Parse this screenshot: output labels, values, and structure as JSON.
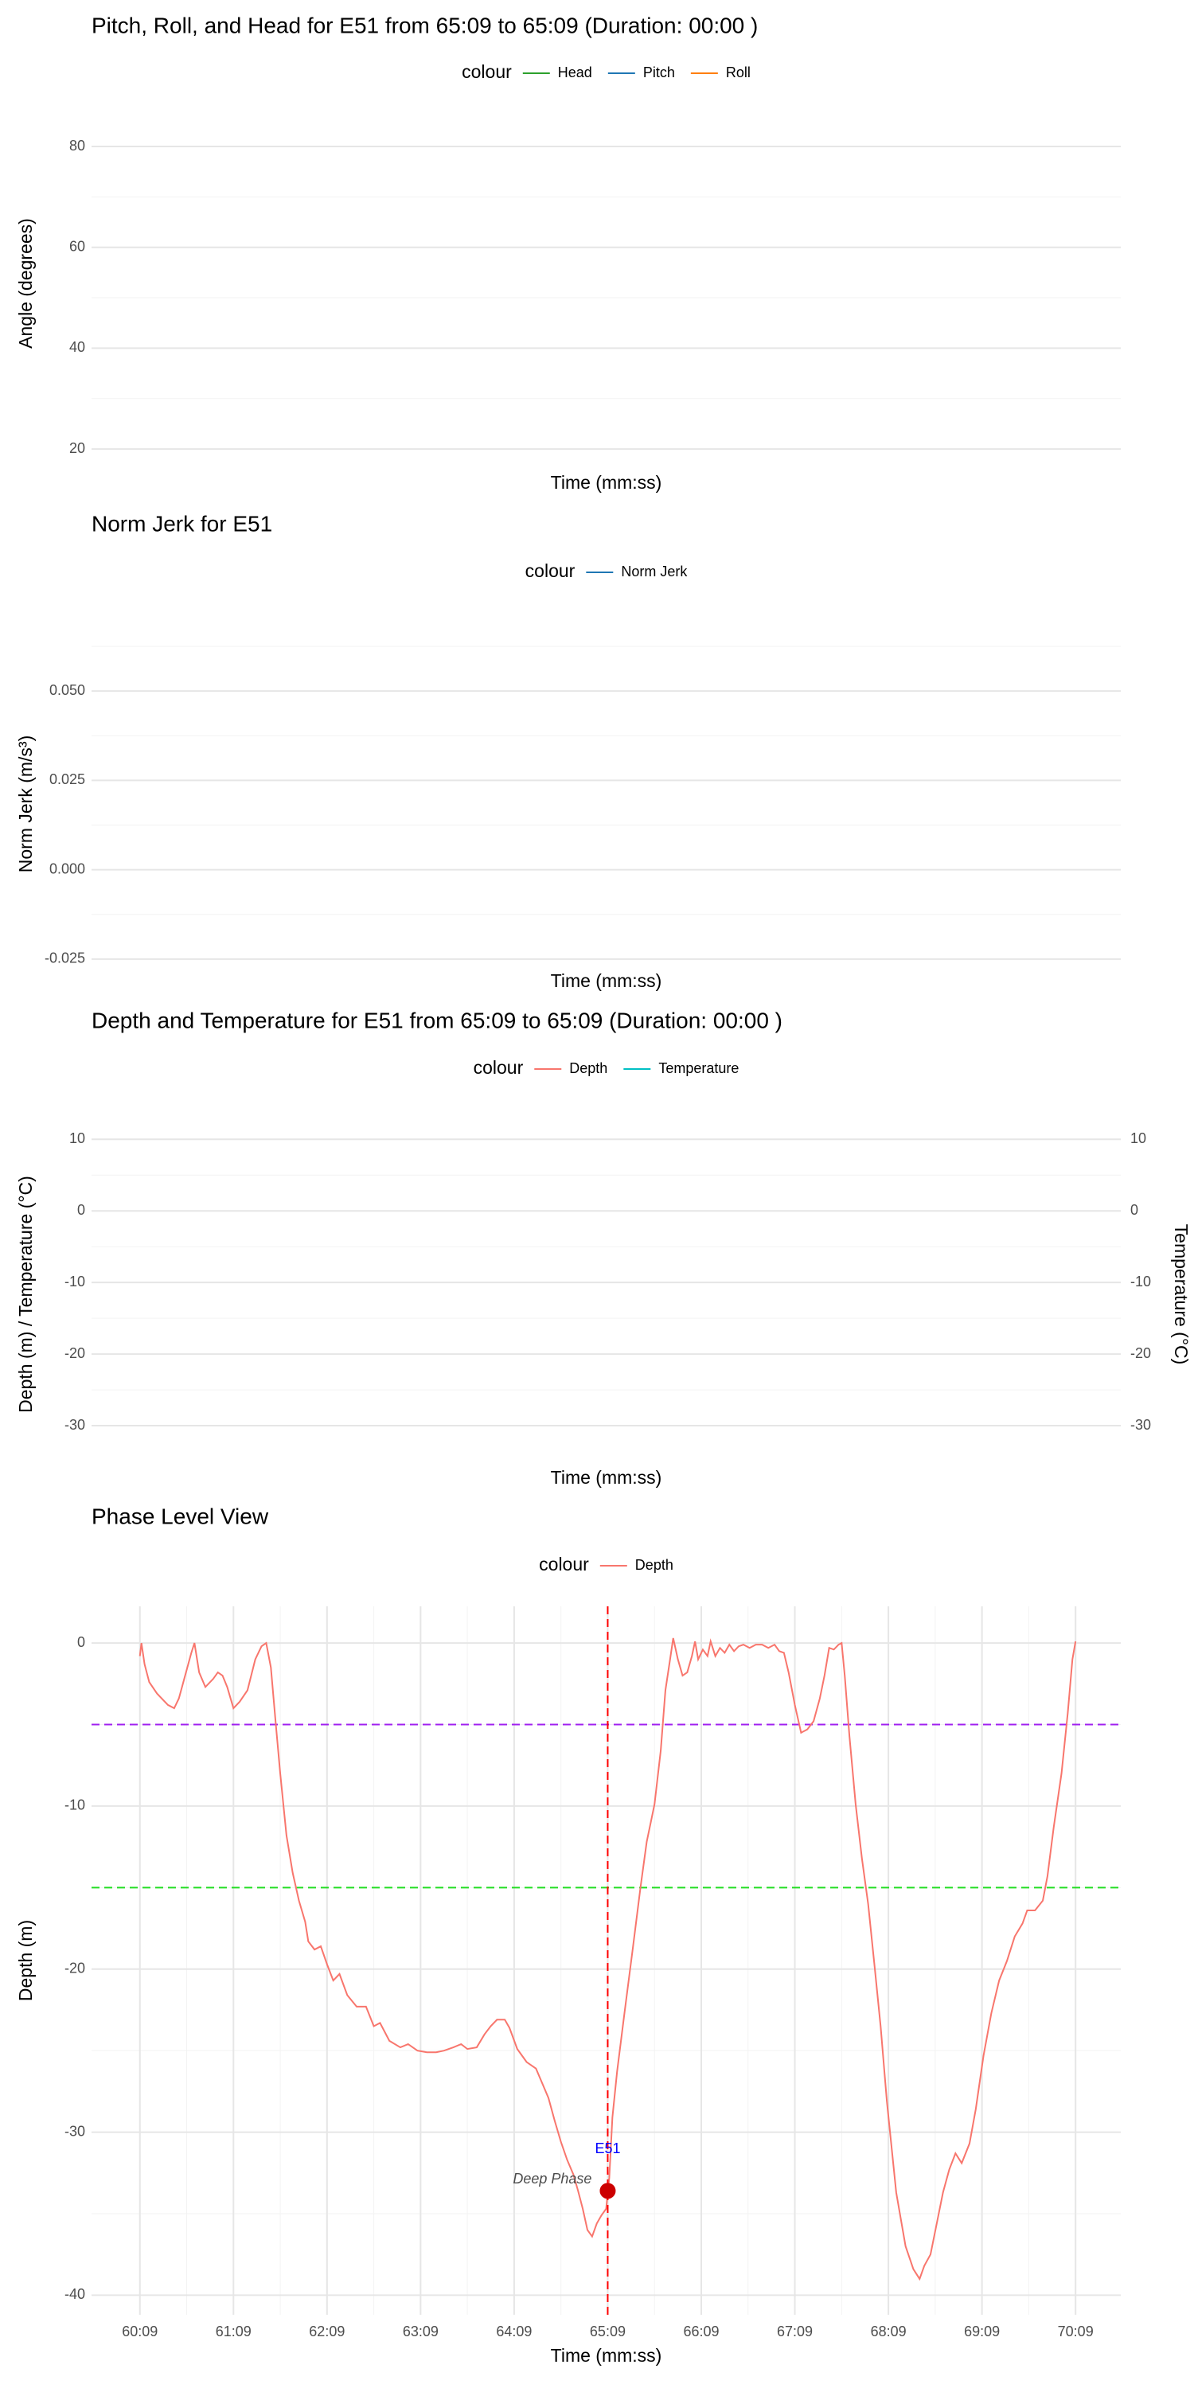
{
  "chart_data": [
    {
      "type": "line",
      "title": "Pitch, Roll, and Head for E51 from 65:09 to 65:09 (Duration: 00:00 )",
      "legend_title": "colour",
      "xlabel": "Time (mm:ss)",
      "ylabel": "Angle (degrees)",
      "series": [
        {
          "name": "Head",
          "color": "#2ca02c",
          "values": []
        },
        {
          "name": "Pitch",
          "color": "#1f77b4",
          "values": []
        },
        {
          "name": "Roll",
          "color": "#ff7f0e",
          "values": []
        }
      ],
      "ylim": [
        17.8,
        87.9
      ],
      "yticks": [
        20,
        40,
        60,
        80
      ],
      "yminor": [
        30,
        50,
        70
      ],
      "grid": true
    },
    {
      "type": "line",
      "title": "Norm Jerk for E51",
      "legend_title": "colour",
      "xlabel": "Time (mm:ss)",
      "ylabel": "Norm Jerk (m/s³)",
      "series": [
        {
          "name": "Norm Jerk",
          "color": "#1f77b4",
          "values": []
        }
      ],
      "ylim": [
        -0.0277,
        0.0645
      ],
      "yticks": [
        -0.025,
        0.025,
        {
          "value": 0,
          "label": "0.000"
        },
        {
          "value": 0.05,
          "label": "0.050"
        }
      ],
      "yminor": [
        -0.0125,
        0.0125,
        0.0375,
        0.0625
      ],
      "grid": true
    },
    {
      "type": "line",
      "title": "Depth and Temperature for E51 from 65:09 to 65:09 (Duration: 00:00 )",
      "legend_title": "colour",
      "xlabel": "Time (mm:ss)",
      "ylabel": "Depth (m) / Temperature (°C)",
      "y2label": "Temperature (°C)",
      "series": [
        {
          "name": "Depth",
          "color": "#f8766d",
          "values": []
        },
        {
          "name": "Temperature",
          "color": "#00bfc4",
          "values": [],
          "axis": "y2"
        }
      ],
      "ylim": [
        -35,
        11.7
      ],
      "yticks": [
        -30,
        -20,
        -10,
        0,
        10
      ],
      "yminor": [
        -25,
        -15,
        -5,
        5
      ],
      "y2lim": [
        -35,
        11.7
      ],
      "y2ticks": [
        -30,
        -20,
        -10,
        0,
        10
      ],
      "grid": true
    },
    {
      "type": "line",
      "title": "Phase Level View",
      "legend_title": "colour",
      "xlabel": "Time (mm:ss)",
      "ylabel": "Depth (m)",
      "x": [
        3609,
        3610,
        3612,
        3615,
        3620,
        3627,
        3631,
        3634,
        3638,
        3642,
        3644,
        3647,
        3651,
        3656,
        3659,
        3662,
        3665,
        3669,
        3673,
        3678,
        3683,
        3687,
        3690,
        3693,
        3696,
        3699,
        3703,
        3707,
        3711,
        3715,
        3717,
        3721,
        3725,
        3729,
        3733,
        3737,
        3742,
        3748,
        3754,
        3759,
        3763,
        3769,
        3776,
        3781,
        3787,
        3793,
        3799,
        3804,
        3810,
        3815,
        3819,
        3825,
        3830,
        3834,
        3838,
        3843,
        3846,
        3851,
        3857,
        3863,
        3867,
        3871,
        3875,
        3879,
        3883,
        3887,
        3890,
        3893,
        3896,
        3899,
        3902,
        3905,
        3908,
        3910,
        3912,
        3915,
        3920,
        3925,
        3930,
        3934,
        3939,
        3943,
        3946,
        3949,
        3951,
        3954,
        3957,
        3960,
        3963,
        3965,
        3967,
        3970,
        3973,
        3975,
        3978,
        3981,
        3984,
        3987,
        3990,
        3993,
        3996,
        4000,
        4004,
        4008,
        4012,
        4016,
        4019,
        4022,
        4025,
        4029,
        4033,
        4037,
        4041,
        4045,
        4048,
        4051,
        4054,
        4057,
        4059,
        4061,
        4064,
        4068,
        4072,
        4076,
        4080,
        4084,
        4088,
        4094,
        4100,
        4105,
        4109,
        4112,
        4116,
        4120,
        4124,
        4128,
        4132,
        4136,
        4141,
        4145,
        4150,
        4155,
        4160,
        4165,
        4170,
        4175,
        4178,
        4183,
        4188,
        4191,
        4195,
        4200,
        4204,
        4207,
        4209
      ],
      "series": [
        {
          "name": "Depth",
          "color": "#f8766d",
          "values": [
            -0.8,
            0,
            -1.3,
            -2.4,
            -3.1,
            -3.8,
            -4.0,
            -3.4,
            -2.0,
            -0.6,
            0,
            -1.8,
            -2.7,
            -2.2,
            -1.8,
            -2.0,
            -2.7,
            -4.0,
            -3.6,
            -2.9,
            -1.0,
            -0.2,
            0,
            -1.5,
            -4.8,
            -8.0,
            -11.8,
            -14.1,
            -15.8,
            -17.1,
            -18.3,
            -18.8,
            -18.6,
            -19.7,
            -20.7,
            -20.3,
            -21.6,
            -22.3,
            -22.3,
            -23.5,
            -23.3,
            -24.4,
            -24.8,
            -24.6,
            -25.0,
            -25.1,
            -25.1,
            -25.0,
            -24.8,
            -24.6,
            -24.9,
            -24.8,
            -24.0,
            -23.5,
            -23.1,
            -23.1,
            -23.6,
            -24.9,
            -25.7,
            -26.1,
            -27.0,
            -27.9,
            -29.3,
            -30.6,
            -31.7,
            -32.6,
            -33.6,
            -34.7,
            -36.0,
            -36.4,
            -35.6,
            -35.1,
            -34.7,
            -32.8,
            -29.1,
            -26.3,
            -22.5,
            -18.8,
            -15.0,
            -12.2,
            -9.9,
            -6.6,
            -2.9,
            -1.0,
            0.3,
            -1.0,
            -2.0,
            -1.8,
            -0.8,
            0.1,
            -1.0,
            -0.4,
            -0.8,
            0.1,
            -0.8,
            -0.3,
            -0.6,
            -0.1,
            -0.5,
            -0.2,
            -0.1,
            -0.3,
            -0.1,
            -0.1,
            -0.3,
            -0.1,
            -0.5,
            -0.6,
            -1.8,
            -3.8,
            -5.5,
            -5.3,
            -4.8,
            -3.4,
            -2.0,
            -0.3,
            -0.4,
            -0.1,
            0,
            -2.0,
            -5.7,
            -9.9,
            -13.2,
            -16.0,
            -19.7,
            -23.5,
            -28.1,
            -33.7,
            -37.0,
            -38.4,
            -39.0,
            -38.2,
            -37.5,
            -35.6,
            -33.7,
            -32.3,
            -31.3,
            -31.9,
            -30.7,
            -28.6,
            -25.3,
            -22.7,
            -20.7,
            -19.5,
            -18.0,
            -17.2,
            -16.4,
            -16.4,
            -15.8,
            -14.3,
            -11.3,
            -8.0,
            -4.3,
            -1.0,
            0.1
          ]
        }
      ],
      "xlim": [
        3578,
        4238
      ],
      "xticks": [
        {
          "value": 3609,
          "label": "60:09"
        },
        {
          "value": 3669,
          "label": "61:09"
        },
        {
          "value": 3729,
          "label": "62:09"
        },
        {
          "value": 3789,
          "label": "63:09"
        },
        {
          "value": 3849,
          "label": "64:09"
        },
        {
          "value": 3909,
          "label": "65:09"
        },
        {
          "value": 3969,
          "label": "66:09"
        },
        {
          "value": 4029,
          "label": "67:09"
        },
        {
          "value": 4089,
          "label": "68:09"
        },
        {
          "value": 4149,
          "label": "69:09"
        },
        {
          "value": 4209,
          "label": "70:09"
        }
      ],
      "xminor": [
        3639,
        3699,
        3759,
        3819,
        3879,
        3939,
        3999,
        4059,
        4119,
        4179
      ],
      "ylim": [
        -41.2,
        2.25
      ],
      "yticks": [
        -40,
        -30,
        -20,
        -10,
        0
      ],
      "yminor": [
        -35,
        -25,
        -15,
        -5
      ],
      "grid": true,
      "hlines": [
        {
          "y": -5,
          "color": "#a020f0"
        },
        {
          "y": -15,
          "color": "#22dd22"
        }
      ],
      "vline": {
        "x": 3909,
        "color": "#ff0000"
      },
      "point": {
        "x": 3909,
        "y": -33.6,
        "color": "#cc0000"
      },
      "point_label": "E51",
      "point_label_color": "#0000ff",
      "phase_label": "Deep Phase"
    }
  ]
}
